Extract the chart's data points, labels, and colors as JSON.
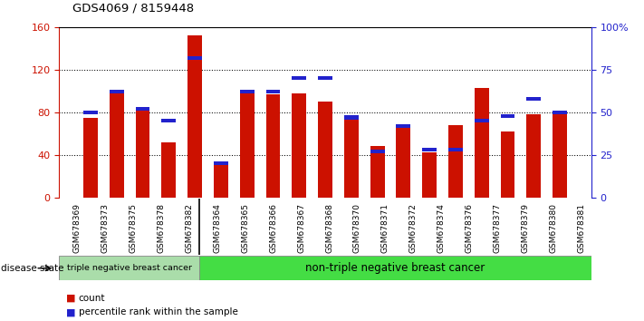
{
  "title": "GDS4069 / 8159448",
  "samples": [
    "GSM678369",
    "GSM678373",
    "GSM678375",
    "GSM678378",
    "GSM678382",
    "GSM678364",
    "GSM678365",
    "GSM678366",
    "GSM678367",
    "GSM678368",
    "GSM678370",
    "GSM678371",
    "GSM678372",
    "GSM678374",
    "GSM678376",
    "GSM678377",
    "GSM678379",
    "GSM678380",
    "GSM678381"
  ],
  "counts": [
    75,
    98,
    83,
    52,
    152,
    34,
    100,
    97,
    98,
    90,
    77,
    48,
    67,
    42,
    68,
    103,
    62,
    78,
    78
  ],
  "percentiles": [
    50,
    62,
    52,
    45,
    82,
    20,
    62,
    62,
    70,
    70,
    47,
    27,
    42,
    28,
    28,
    45,
    48,
    58,
    50
  ],
  "triple_neg_count": 5,
  "non_triple_neg_count": 14,
  "bar_color": "#cc1100",
  "percentile_color": "#2222cc",
  "ylim_left": [
    0,
    160
  ],
  "ylim_right": [
    0,
    100
  ],
  "yticks_left": [
    0,
    40,
    80,
    120,
    160
  ],
  "yticks_right_vals": [
    0,
    25,
    50,
    75,
    100
  ],
  "yticks_right_labels": [
    "0",
    "25",
    "50",
    "75",
    "100%"
  ],
  "grid_yticks": [
    40,
    80,
    120
  ],
  "left_label": "triple negative breast cancer",
  "right_label": "non-triple negative breast cancer",
  "group_label": "disease state",
  "tick_bg": "#cccccc",
  "triple_neg_color": "#aaddaa",
  "non_triple_neg_color": "#44dd44"
}
